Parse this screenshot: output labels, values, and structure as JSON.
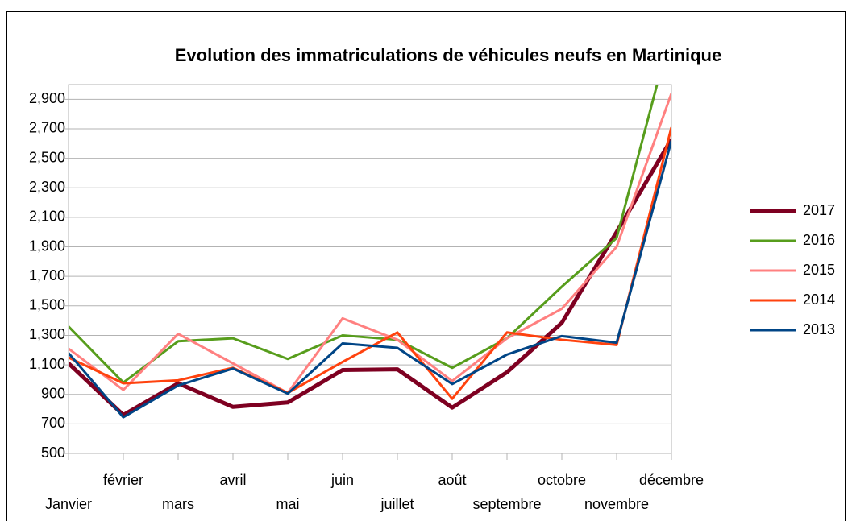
{
  "chart_data": {
    "type": "line",
    "title": "Evolution des immatriculations de véhicules neufs en Martinique",
    "categories": [
      "Janvier",
      "février",
      "mars",
      "avril",
      "mai",
      "juin",
      "juillet",
      "août",
      "septembre",
      "octobre",
      "novembre",
      "décembre"
    ],
    "series": [
      {
        "name": "2017",
        "color": "#7e0021",
        "width": 5,
        "values": [
          1110,
          760,
          975,
          815,
          845,
          1065,
          1070,
          810,
          1050,
          1385,
          2000,
          2630
        ]
      },
      {
        "name": "2016",
        "color": "#579d1c",
        "width": 3,
        "values": [
          1360,
          980,
          1260,
          1280,
          1140,
          1300,
          1270,
          1080,
          1280,
          1630,
          1960,
          3370
        ]
      },
      {
        "name": "2015",
        "color": "#ff8080",
        "width": 3,
        "values": [
          1210,
          930,
          1310,
          1110,
          910,
          1415,
          1270,
          990,
          1280,
          1480,
          1900,
          2940
        ]
      },
      {
        "name": "2014",
        "color": "#ff420e",
        "width": 3,
        "values": [
          1150,
          975,
          995,
          1080,
          910,
          1120,
          1320,
          870,
          1320,
          1270,
          1235,
          2710
        ]
      },
      {
        "name": "2013",
        "color": "#004586",
        "width": 3,
        "values": [
          1180,
          745,
          960,
          1075,
          905,
          1245,
          1215,
          970,
          1170,
          1295,
          1250,
          2620
        ]
      }
    ],
    "ylim": [
      500,
      3000
    ],
    "yticks": [
      500,
      700,
      900,
      {
        "value": 1100,
        "label": "1,100"
      },
      {
        "value": 1300,
        "label": "1,300"
      },
      {
        "value": 1500,
        "label": "1,500"
      },
      {
        "value": 1700,
        "label": "1,700"
      },
      {
        "value": 1900,
        "label": "1,900"
      },
      {
        "value": 2100,
        "label": "2,100"
      },
      {
        "value": 2300,
        "label": "2,300"
      },
      {
        "value": 2500,
        "label": "2,500"
      },
      {
        "value": 2700,
        "label": "2,700"
      },
      {
        "value": 2900,
        "label": "2,900"
      }
    ],
    "grid": true,
    "legend": "right"
  }
}
